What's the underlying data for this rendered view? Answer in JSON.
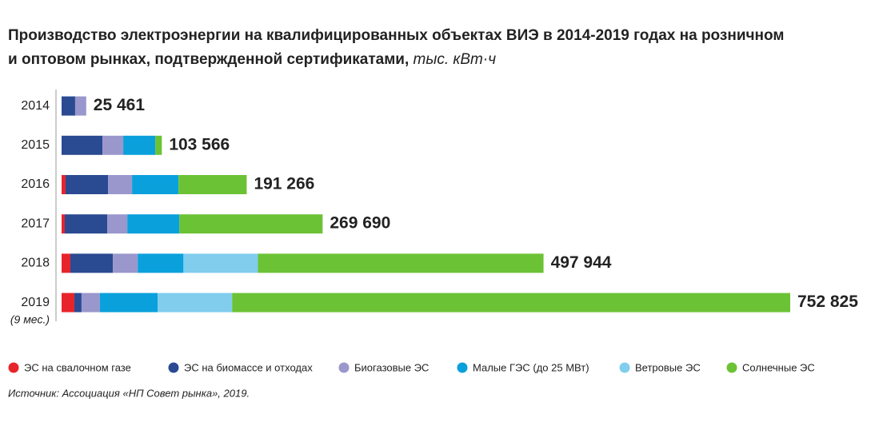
{
  "chart_data": {
    "type": "stacked-barh",
    "title_lines": [
      "Производство электроэнергии на квалифицированных объектах ВИЭ в 2014-2019 годах на розничном",
      "и оптовом рынках, подтвержденной сертификатами,"
    ],
    "unit": "тыс. кВт·ч",
    "categories": [
      "2014",
      "2015",
      "2016",
      "2017",
      "2018",
      "2019"
    ],
    "last_category_note": "(9 мес.)",
    "series": [
      {
        "name": "ЭС на свалочном газе",
        "color": "#e8242b",
        "values": [
          null,
          null,
          4100,
          3300,
          9100,
          13200
        ]
      },
      {
        "name": "ЭС на биомассе и отходах",
        "color": "#2a4a92",
        "values": [
          14000,
          42200,
          43900,
          43900,
          43900,
          7400
        ]
      },
      {
        "name": "Биогазовые ЭС",
        "color": "#9a97cc",
        "values": [
          11461,
          21500,
          24800,
          20700,
          25700,
          19000
        ]
      },
      {
        "name": "Малые ГЭС (до 25 МВт)",
        "color": "#0aa0dc",
        "values": [
          null,
          33100,
          48000,
          53800,
          47200,
          59600
        ]
      },
      {
        "name": "Ветровые ЭС",
        "color": "#80cdee",
        "values": [
          null,
          null,
          null,
          null,
          77000,
          77000
        ]
      },
      {
        "name": "Солнечные ЭС",
        "color": "#6cc235",
        "values": [
          null,
          6766,
          70466,
          147990,
          295044,
          576625
        ]
      }
    ],
    "totals": [
      25461,
      103566,
      191266,
      269690,
      497944,
      752825
    ],
    "total_labels": [
      "25 461",
      "103 566",
      "191 266",
      "269 690",
      "497 944",
      "752 825"
    ],
    "source": "Источник: Ассоциация «НП Совет рынка», 2019."
  }
}
